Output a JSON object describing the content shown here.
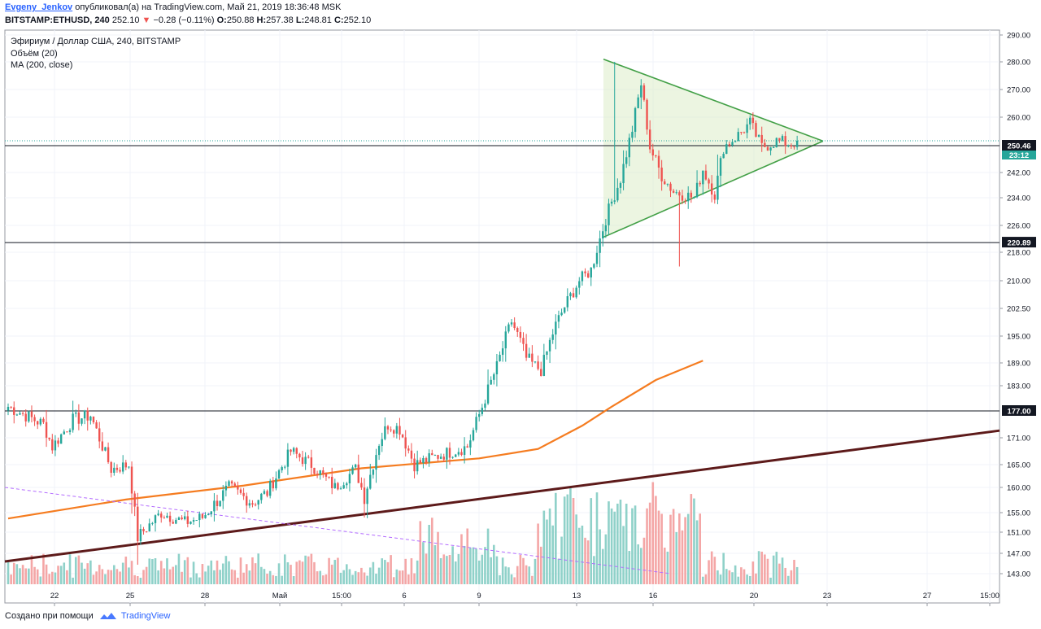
{
  "header": {
    "author": "Evgeny_Jenkov",
    "published": "опубликовал(а) на TradingView.com, Май 21, 2019 18:36:48 MSK",
    "symbol": "BITSTAMP:ETHUSD, 240",
    "last": "252.10",
    "arrow": "▼",
    "change": "−0.28 (−0.11%)",
    "o_label": "O:",
    "o_value": "250.88",
    "h_label": "H:",
    "h_value": "257.38",
    "l_label": "L:",
    "l_value": "248.81",
    "c_label": "C:",
    "c_value": "252.10"
  },
  "legend": {
    "title": "Эфириум / Доллар США, 240, BITSTAMP",
    "volume": "Объём (20)",
    "ma": "MA (200, close)"
  },
  "footer": {
    "made_with": "Создано при помощи",
    "brand": "TradingView"
  },
  "colors": {
    "up": "#26a69a",
    "down": "#ef5350",
    "vol_up": "#8fd1c9",
    "vol_down": "#f4a6a6",
    "ma": "#f57c20",
    "trend": "#5d1a1a",
    "triangle": "#43a047",
    "triangle_fill": "#dcedc8",
    "dashed": "#b36bff"
  },
  "chart_data": {
    "type": "candlestick",
    "y_ticks": [
      "290.00",
      "280.00",
      "270.00",
      "260.00",
      "250.46",
      "242.00",
      "234.00",
      "226.00",
      "220.89",
      "218.00",
      "210.00",
      "202.50",
      "195.00",
      "189.00",
      "183.00",
      "177.00",
      "171.00",
      "165.00",
      "160.00",
      "155.00",
      "151.00",
      "147.00",
      "143.00"
    ],
    "x_ticks": [
      "22",
      "25",
      "28",
      "Май",
      "15:00",
      "6",
      "9",
      "13",
      "16",
      "20",
      "23",
      "27",
      "15:00"
    ],
    "ylim": [
      141.5,
      291
    ],
    "levels": [
      {
        "value": 250.46,
        "label": "250.46",
        "sub": "23:12"
      },
      {
        "value": 220.89,
        "label": "220.89"
      },
      {
        "value": 177.0,
        "label": "177.00"
      }
    ],
    "anchors": [
      [
        0,
        178
      ],
      [
        12,
        174
      ],
      [
        15,
        169
      ],
      [
        22,
        175
      ],
      [
        28,
        176
      ],
      [
        35,
        164
      ],
      [
        41,
        165
      ],
      [
        44,
        150
      ],
      [
        52,
        155
      ],
      [
        60,
        153
      ],
      [
        66,
        154
      ],
      [
        75,
        160
      ],
      [
        83,
        157
      ],
      [
        88,
        159
      ],
      [
        96,
        168
      ],
      [
        103,
        165
      ],
      [
        111,
        160
      ],
      [
        118,
        164
      ],
      [
        121,
        158
      ],
      [
        126,
        170
      ],
      [
        129,
        174
      ],
      [
        133,
        173
      ],
      [
        138,
        165
      ],
      [
        146,
        167
      ],
      [
        151,
        168
      ],
      [
        156,
        169
      ],
      [
        161,
        178
      ],
      [
        166,
        188
      ],
      [
        171,
        199
      ],
      [
        176,
        190
      ],
      [
        181,
        187
      ],
      [
        186,
        198
      ],
      [
        189,
        203
      ],
      [
        194,
        210
      ],
      [
        198,
        213
      ],
      [
        203,
        228
      ],
      [
        208,
        240
      ],
      [
        212,
        256
      ],
      [
        215,
        272
      ],
      [
        218,
        250
      ],
      [
        222,
        241
      ],
      [
        226,
        236
      ],
      [
        233,
        234
      ],
      [
        236,
        243
      ],
      [
        240,
        235
      ],
      [
        243,
        250
      ],
      [
        248,
        254
      ],
      [
        252,
        258
      ],
      [
        256,
        250
      ],
      [
        261,
        252
      ],
      [
        266,
        251
      ],
      [
        268,
        252.1
      ]
    ],
    "n_candles": 269,
    "ma200": [
      [
        0,
        153.8
      ],
      [
        40,
        157.6
      ],
      [
        80,
        160.4
      ],
      [
        120,
        164.2
      ],
      [
        160,
        166.4
      ],
      [
        180,
        168.5
      ],
      [
        195,
        173.7
      ],
      [
        205,
        178
      ],
      [
        220,
        184.5
      ],
      [
        236,
        189.5
      ]
    ],
    "trendline": [
      [
        0,
        145.4
      ],
      [
        301,
        172.6
      ]
    ],
    "triangle": {
      "points": [
        [
          200,
          281
        ],
        [
          248,
          252
        ],
        [
          200,
          222.5
        ]
      ]
    }
  }
}
